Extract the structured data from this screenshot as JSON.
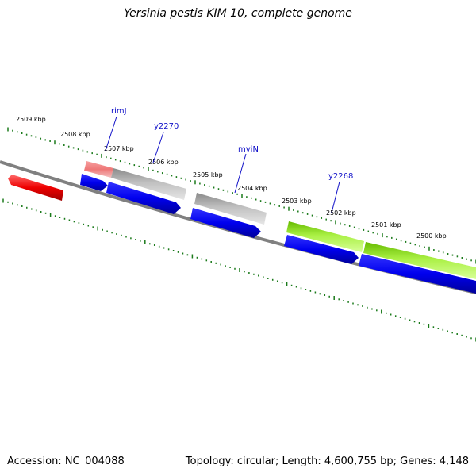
{
  "title": "Yersinia pestis KIM 10, complete genome",
  "footer": {
    "accession": "Accession: NC_004088",
    "topology": "Topology: circular; Length: 4,600,755 bp; Genes: 4,148"
  },
  "kbp_labels": [
    "2509 kbp",
    "2508 kbp",
    "2507 kbp",
    "2506 kbp",
    "2505 kbp",
    "2504 kbp",
    "2503 kbp",
    "2502 kbp",
    "2501 kbp",
    "2500 kbp"
  ],
  "gene_labels": [
    "rimJ",
    "y2270",
    "mviN",
    "y2268"
  ],
  "colors": {
    "backbone": "#808080",
    "tick": "#1a7a1a",
    "gene_label": "#1010c8",
    "cds": "#0000ee",
    "red_feature": "#ee0000",
    "light_red_feature": "#f08080",
    "gray_feature": "#b4b4b4",
    "green_feature": "#99ee33"
  }
}
